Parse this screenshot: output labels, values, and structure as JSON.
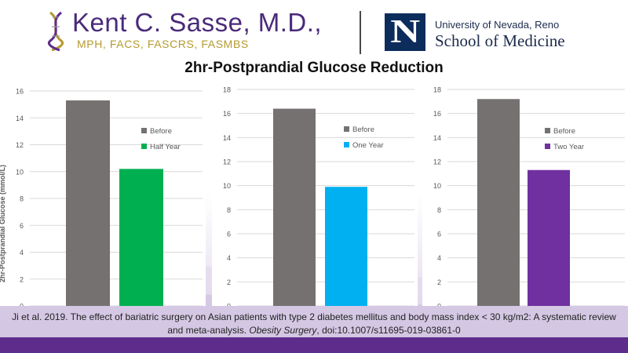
{
  "header": {
    "doctor_name": "Kent C. Sasse, M.D.,",
    "credentials": "MPH, FACS, FASCRS, FASMBS",
    "logo_letter": "N",
    "university_line": "University of Nevada, Reno",
    "school_line": "School of Medicine"
  },
  "title": "2hr-Postprandial Glucose Reduction",
  "y_axis_label": "2hr-Postprandial Glucose (mmol/L)",
  "citation": {
    "line1": "Ji et al. 2019. The effect of bariatric surgery on Asian patients with type 2 diabetes mellitus and body mass index < 30 kg/m2: A systematic review",
    "line2_prefix": "and meta-analysis. ",
    "journal": "Obesity Surgery",
    "line2_suffix": ", doi:10.1007/s11695-019-03861-0"
  },
  "colors": {
    "before": "#767171",
    "half_year": "#00b050",
    "one_year": "#00b0f0",
    "two_year": "#7030a0",
    "brand_purple": "#5e2d8c"
  },
  "chart_data": [
    {
      "type": "bar",
      "categories": [
        "Before",
        "Half Year"
      ],
      "values": [
        15.3,
        10.2
      ],
      "ylim": [
        0,
        16
      ],
      "yticks": [
        0,
        2,
        4,
        6,
        8,
        10,
        12,
        14,
        16
      ],
      "ylabel": "2hr-Postprandial Glucose (mmol/L)",
      "grid": true,
      "legend": [
        {
          "label": "Before",
          "color": "#767171"
        },
        {
          "label": "Half Year",
          "color": "#00b050"
        }
      ],
      "legend_position": "right"
    },
    {
      "type": "bar",
      "categories": [
        "Before",
        "One Year"
      ],
      "values": [
        16.4,
        9.9
      ],
      "ylim": [
        0,
        18
      ],
      "yticks": [
        0,
        2,
        4,
        6,
        8,
        10,
        12,
        14,
        16,
        18
      ],
      "grid": true,
      "legend": [
        {
          "label": "Before",
          "color": "#767171"
        },
        {
          "label": "One Year",
          "color": "#00b0f0"
        }
      ],
      "legend_position": "right"
    },
    {
      "type": "bar",
      "categories": [
        "Before",
        "Two Year"
      ],
      "values": [
        17.2,
        11.3
      ],
      "ylim": [
        0,
        18
      ],
      "yticks": [
        0,
        2,
        4,
        6,
        8,
        10,
        12,
        14,
        16,
        18
      ],
      "grid": true,
      "legend": [
        {
          "label": "Before",
          "color": "#767171"
        },
        {
          "label": "Two Year",
          "color": "#7030a0"
        }
      ],
      "legend_position": "right"
    }
  ]
}
